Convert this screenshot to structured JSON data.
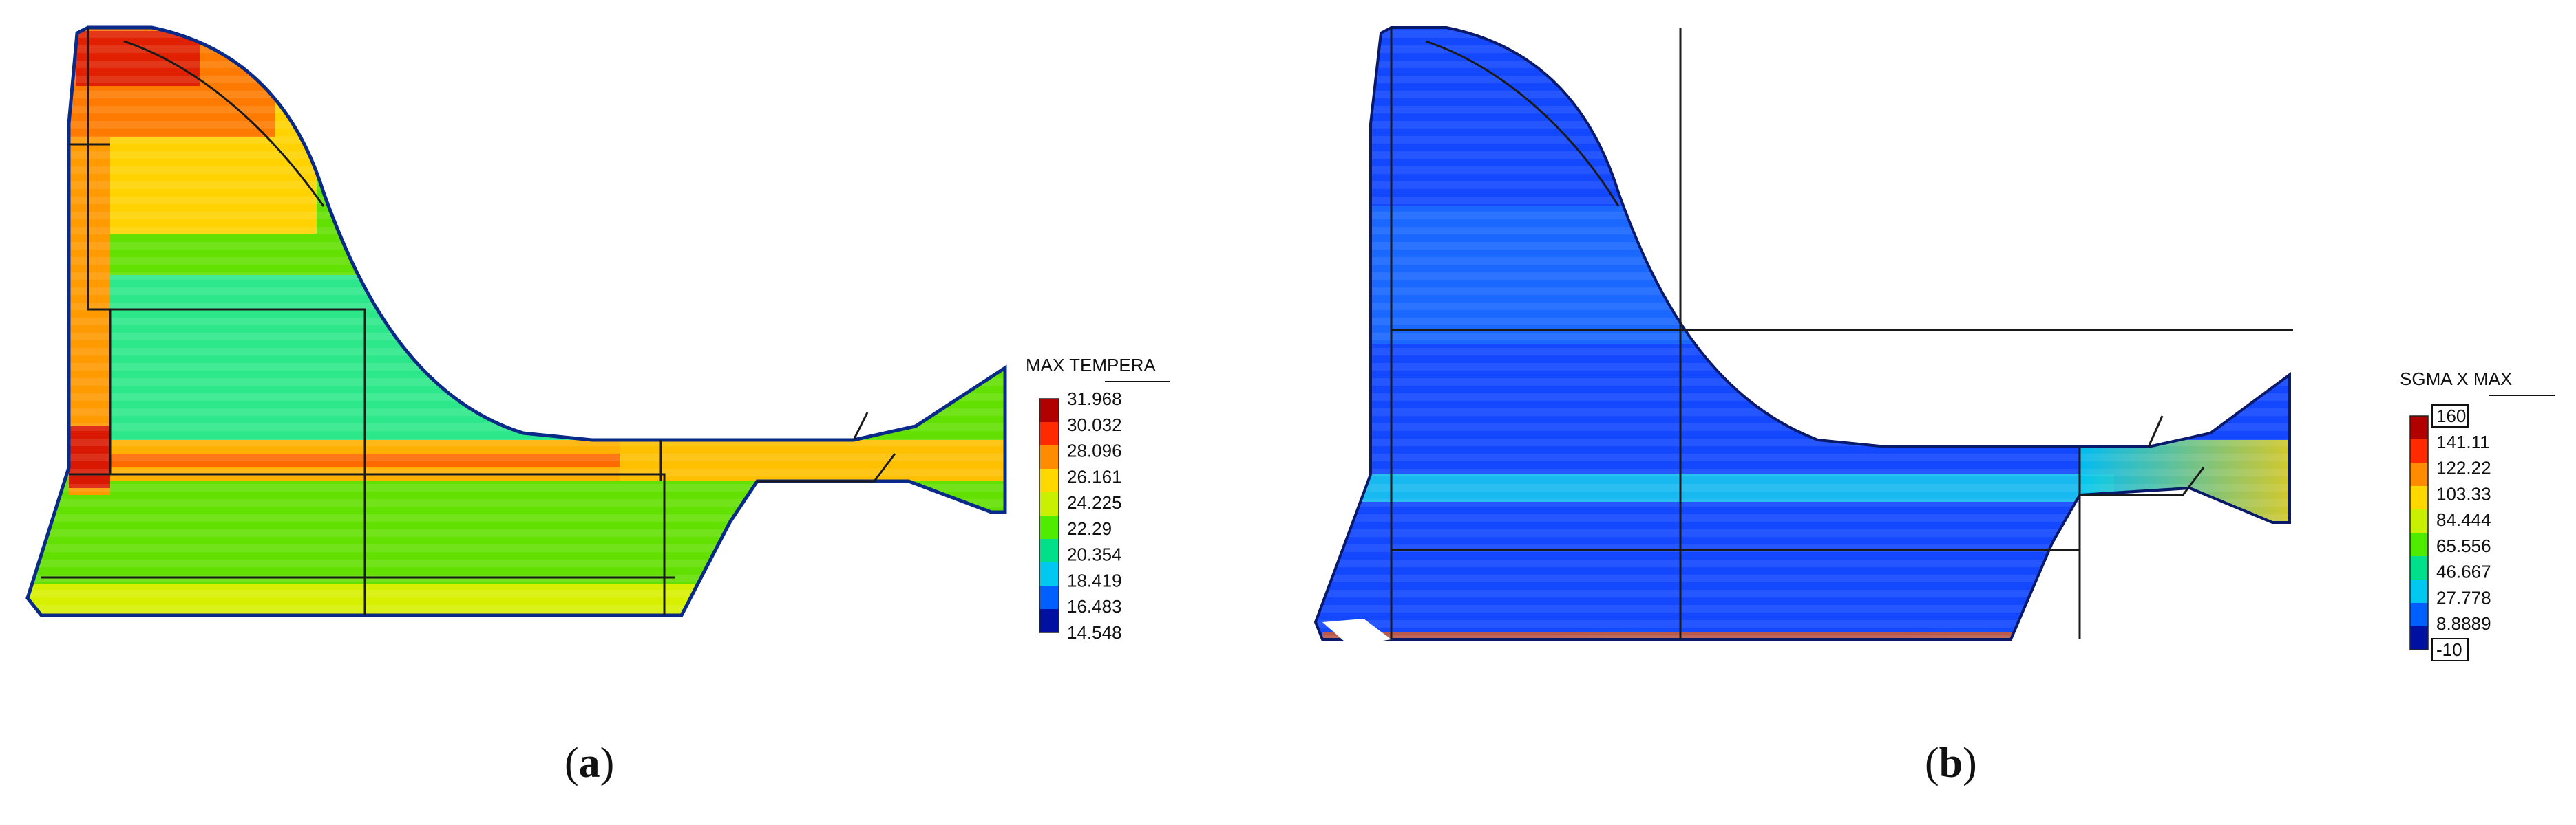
{
  "panels": [
    {
      "id": "a",
      "caption_letter": "a",
      "legend": {
        "title": "MAX TEMPERA",
        "ticks": [
          "31.968",
          "30.032",
          "28.096",
          "26.161",
          "24.225",
          "22.29",
          "20.354",
          "18.419",
          "16.483",
          "14.548"
        ],
        "colors": [
          "#b00000",
          "#ff2a00",
          "#ff8c00",
          "#ffd800",
          "#c8f000",
          "#50ec00",
          "#00e08a",
          "#00c8f0",
          "#0060ff",
          "#0010a0"
        ]
      }
    },
    {
      "id": "b",
      "caption_letter": "b",
      "legend": {
        "title": "SGMA X MAX",
        "ticks": [
          "160",
          "141.11",
          "122.22",
          "103.33",
          "84.444",
          "65.556",
          "46.667",
          "27.778",
          "8.8889",
          "-10"
        ],
        "boxed_ticks": [
          "160",
          "-10"
        ],
        "colors": [
          "#b00000",
          "#ff2a00",
          "#ff8c00",
          "#ffd800",
          "#c8f000",
          "#50ec00",
          "#00e08a",
          "#00c8f0",
          "#0060ff",
          "#0010a0"
        ]
      }
    }
  ]
}
